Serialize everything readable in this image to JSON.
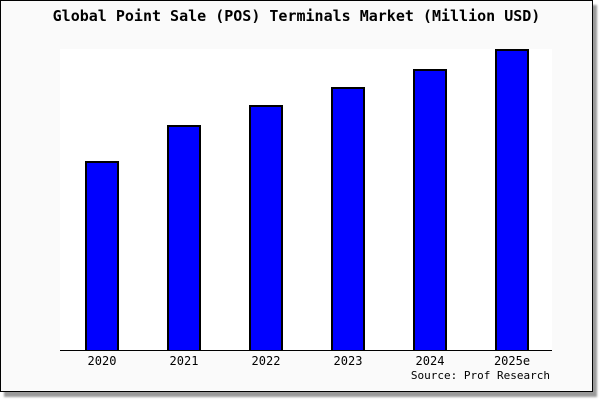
{
  "chart_data": {
    "type": "bar",
    "title": "Global Point Sale (POS) Terminals Market (Million USD)",
    "unit": "Million USD",
    "categories": [
      "2020",
      "2021",
      "2022",
      "2023",
      "2024",
      "2025e"
    ],
    "values_relative_pct_of_max": [
      62.8,
      74.8,
      81.4,
      87.4,
      93.4,
      100
    ],
    "xlabel": "",
    "ylabel": "",
    "y_axis_tick_labels_visible": false,
    "grid": false,
    "legend_position": "none",
    "source": "Source: Prof Research",
    "bar_fill_color": "#0000ff",
    "bar_border_color": "#000000",
    "plot_bg_color": "#ffffff",
    "window_bg_color": "#fafafa",
    "axis_color": "#000000",
    "title_color": "#000000"
  }
}
